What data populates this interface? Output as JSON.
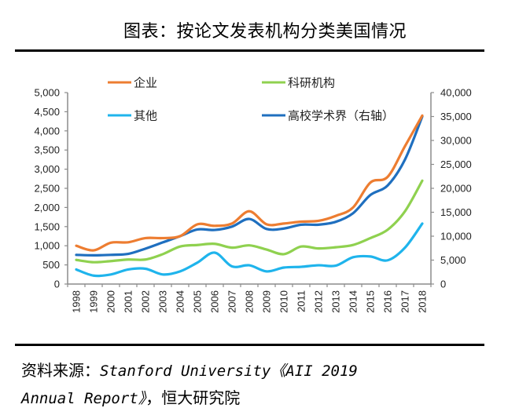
{
  "title": "图表：按论文发表机构分类美国情况",
  "source": {
    "prefix": "资料来源：",
    "english_1": "Stanford University《AII 2019",
    "english_2": "Annual Report》",
    "suffix": "，恒大研究院"
  },
  "chart_data": {
    "type": "line",
    "title": "图表：按论文发表机构分类美国情况",
    "xlabel": "",
    "ylabel_left": "",
    "ylabel_right": "",
    "x": [
      "1998",
      "1999",
      "2000",
      "2001",
      "2002",
      "2003",
      "2004",
      "2005",
      "2006",
      "2007",
      "2008",
      "2009",
      "2010",
      "2011",
      "2012",
      "2013",
      "2014",
      "2015",
      "2016",
      "2017",
      "2018"
    ],
    "ylim_left": [
      0,
      5000
    ],
    "ylim_right": [
      0,
      40000
    ],
    "yticks_left": [
      "0",
      "500",
      "1,000",
      "1,500",
      "2,000",
      "2,500",
      "3,000",
      "3,500",
      "4,000",
      "4,500",
      "5,000"
    ],
    "yticks_right": [
      "0",
      "5,000",
      "10,000",
      "15,000",
      "20,000",
      "25,000",
      "30,000",
      "35,000",
      "40,000"
    ],
    "grid": false,
    "legend_position": "top",
    "series": [
      {
        "name": "企业",
        "axis": "left",
        "color": "#ED7D31",
        "values": [
          1000,
          880,
          1080,
          1090,
          1200,
          1200,
          1250,
          1560,
          1520,
          1580,
          1900,
          1560,
          1580,
          1630,
          1650,
          1780,
          2000,
          2650,
          2800,
          3600,
          4400
        ]
      },
      {
        "name": "科研机构",
        "axis": "left",
        "color": "#8FD14F",
        "values": [
          630,
          570,
          600,
          640,
          640,
          780,
          980,
          1020,
          1050,
          950,
          1010,
          900,
          780,
          980,
          930,
          960,
          1020,
          1200,
          1420,
          1900,
          2700
        ]
      },
      {
        "name": "其他",
        "axis": "left",
        "color": "#1FB4EC",
        "values": [
          380,
          220,
          250,
          380,
          400,
          250,
          330,
          560,
          820,
          460,
          490,
          330,
          430,
          450,
          490,
          480,
          700,
          720,
          620,
          950,
          1580
        ]
      },
      {
        "name": "高校学术界（右轴）",
        "axis": "right",
        "color": "#1F6FBF",
        "values": [
          6100,
          6000,
          6100,
          6300,
          7400,
          8700,
          10000,
          11400,
          11300,
          12000,
          13600,
          11500,
          11600,
          12400,
          12400,
          13000,
          14800,
          18600,
          20600,
          26000,
          35000
        ]
      }
    ]
  }
}
